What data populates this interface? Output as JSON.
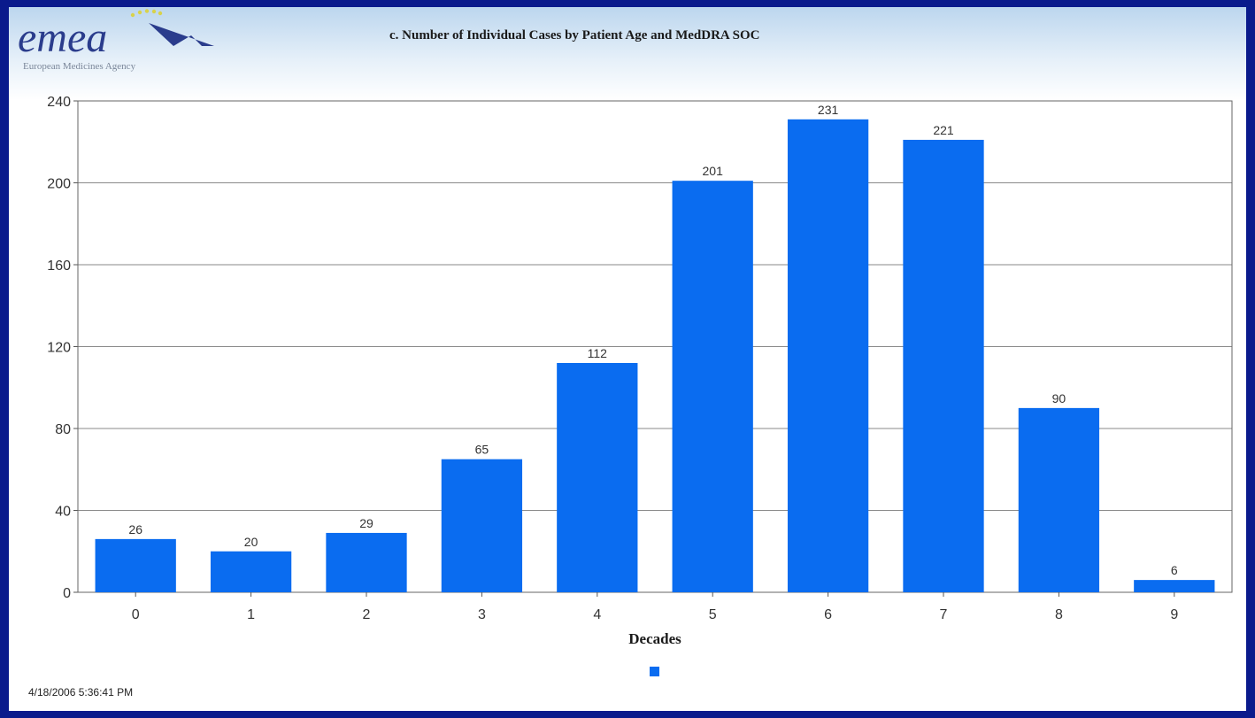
{
  "header": {
    "logo_text": "emea",
    "logo_subtitle": "European Medicines Agency"
  },
  "colors": {
    "border": "#0a1a8c",
    "bar": "#0a6cf0",
    "grid": "#8a8a8a"
  },
  "chart_data": {
    "type": "bar",
    "title": "c. Number of Individual Cases by Patient Age and MedDRA SOC",
    "xlabel": "Decades",
    "ylabel": "",
    "categories": [
      "0",
      "1",
      "2",
      "3",
      "4",
      "5",
      "6",
      "7",
      "8",
      "9"
    ],
    "values": [
      26,
      20,
      29,
      65,
      112,
      201,
      231,
      221,
      90,
      6
    ],
    "ylim": [
      0,
      240
    ],
    "yticks": [
      0,
      40,
      80,
      120,
      160,
      200,
      240
    ],
    "grid": true,
    "legend": "bottom-center",
    "data_labels": true
  },
  "footer": {
    "timestamp": "4/18/2006 5:36:41 PM"
  }
}
